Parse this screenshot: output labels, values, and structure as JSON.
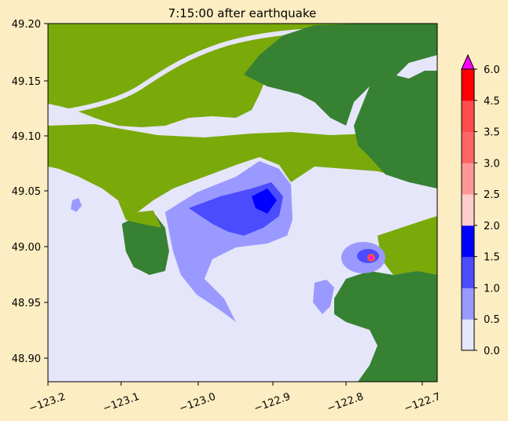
{
  "title": "7:15:00 after earthquake",
  "x_ticks": [
    "−123.2",
    "−123.1",
    "−123.0",
    "−122.9",
    "−122.8",
    "−122.7"
  ],
  "y_ticks": [
    "49.20",
    "49.15",
    "49.10",
    "49.05",
    "49.00",
    "48.95",
    "48.90"
  ],
  "colorbar": {
    "labels": [
      "6.0",
      "4.5",
      "3.5",
      "3.0",
      "2.5",
      "2.0",
      "1.5",
      "1.0",
      "0.5",
      "0.0"
    ],
    "bins": [
      {
        "from": 0.0,
        "to": 0.5,
        "color": "#e6e6fa"
      },
      {
        "from": 0.5,
        "to": 1.0,
        "color": "#9999ff"
      },
      {
        "from": 1.0,
        "to": 1.5,
        "color": "#4c4cff"
      },
      {
        "from": 1.5,
        "to": 2.0,
        "color": "#0000ff"
      },
      {
        "from": 2.0,
        "to": 2.5,
        "color": "#ffcccc"
      },
      {
        "from": 2.5,
        "to": 3.0,
        "color": "#ff9999"
      },
      {
        "from": 3.0,
        "to": 3.5,
        "color": "#ff6666"
      },
      {
        "from": 3.5,
        "to": 4.5,
        "color": "#ff4c4c"
      },
      {
        "from": 4.5,
        "to": 6.0,
        "color": "#ff0000"
      }
    ],
    "extend_color": "#ff00ff"
  },
  "colors": {
    "background": "#fdedc2",
    "water": "#e6e6fa",
    "land_light": "#7aa90a",
    "land_dark": "#378132"
  }
}
